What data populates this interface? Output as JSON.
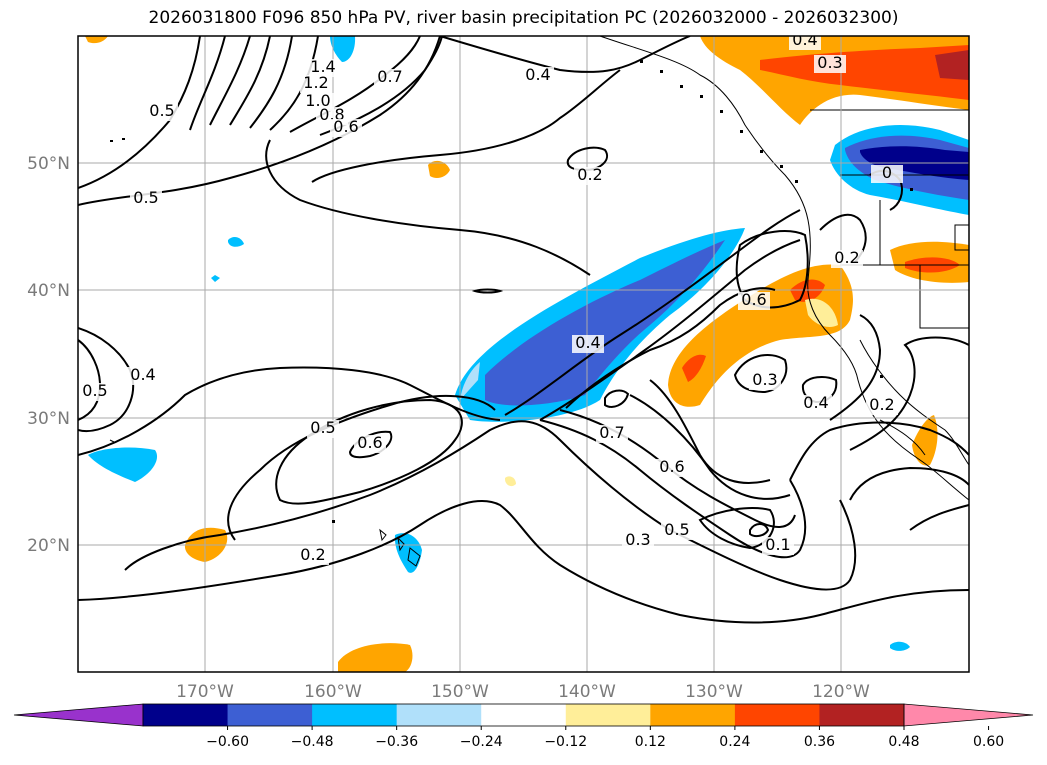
{
  "title": "2026031800 F096 850 hPa PV, river basin precipitation PC (2026032000 - 2026032300)",
  "lat_labels": [
    "50°N",
    "40°N",
    "30°N",
    "20°N"
  ],
  "lon_labels": [
    "170°W",
    "160°W",
    "150°W",
    "140°W",
    "130°W",
    "120°W"
  ],
  "colorbar": {
    "colors": [
      "#9932cc",
      "#00008b",
      "#3d5fd3",
      "#00bfff",
      "#b0e0fa",
      "#ffffff",
      "#ffee99",
      "#ffa500",
      "#ff4500",
      "#b22222",
      "#ff88aa"
    ],
    "labels": [
      "−0.60",
      "−0.48",
      "−0.36",
      "−0.24",
      "−0.12",
      "0.12",
      "0.24",
      "0.36",
      "0.48",
      "0.60"
    ]
  },
  "contour_labels": [
    "1.4",
    "1.2",
    "1.0",
    "0.8",
    "0.6",
    "0.7",
    "0.4",
    "0.4",
    "0.3",
    "0.5",
    "0.5",
    "0.2",
    "0.5",
    "0.4",
    "0.5",
    "0.6",
    "0.4",
    "0.6",
    "0.3",
    "0.4",
    "0.2",
    "0.7",
    "0.6",
    "0.5",
    "0.3",
    "0.1",
    "0.2",
    "0.2",
    "0"
  ]
}
